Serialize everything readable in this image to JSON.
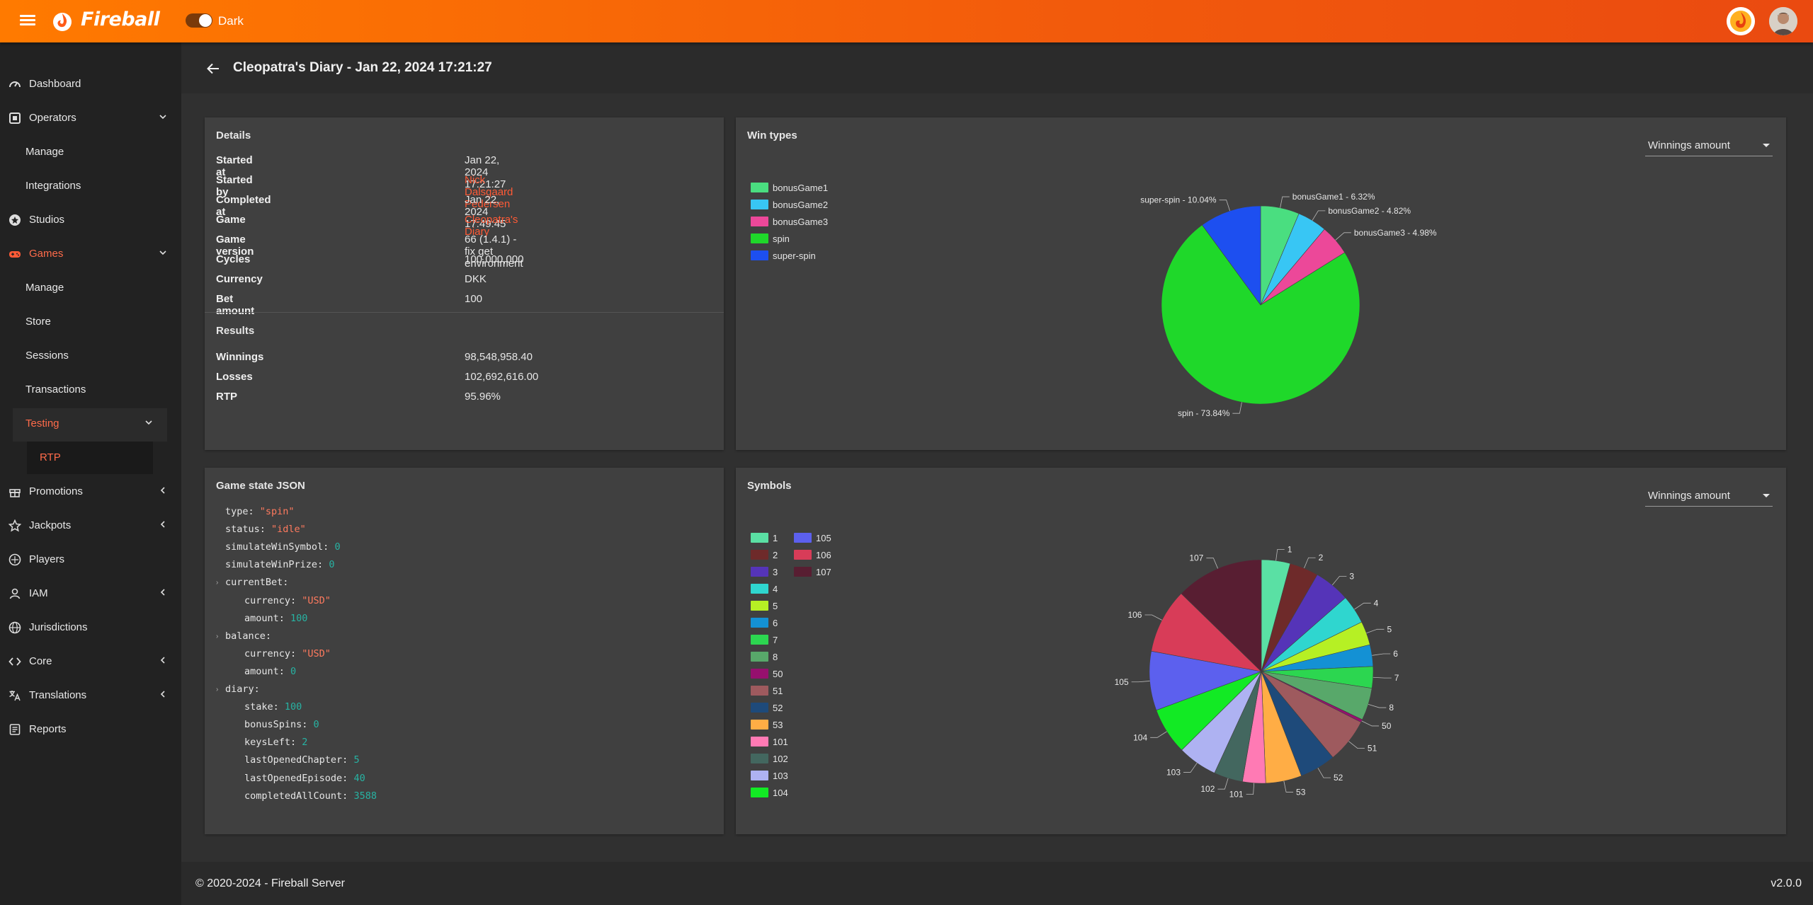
{
  "app": {
    "brand": "Fireball",
    "theme_label": "Dark",
    "accent": "#ff5a36",
    "topbar_color": "#f25a0c"
  },
  "sidebar": {
    "items": [
      {
        "label": "Dashboard",
        "icon": "dashboard-icon"
      },
      {
        "label": "Operators",
        "icon": "operators-icon"
      },
      {
        "label": "Manage"
      },
      {
        "label": "Integrations"
      },
      {
        "label": "Studios",
        "icon": "studios-icon"
      },
      {
        "label": "Games",
        "icon": "gamepad-icon"
      },
      {
        "label": "Manage"
      },
      {
        "label": "Store"
      },
      {
        "label": "Sessions"
      },
      {
        "label": "Transactions"
      },
      {
        "label": "Testing"
      },
      {
        "label": "RTP"
      },
      {
        "label": "Promotions",
        "icon": "gift-icon"
      },
      {
        "label": "Jackpots",
        "icon": "star-icon"
      },
      {
        "label": "Players",
        "icon": "players-icon"
      },
      {
        "label": "IAM",
        "icon": "person-icon"
      },
      {
        "label": "Jurisdictions",
        "icon": "globe-icon"
      },
      {
        "label": "Core",
        "icon": "code-icon"
      },
      {
        "label": "Translations",
        "icon": "translate-icon"
      },
      {
        "label": "Reports",
        "icon": "reports-icon"
      }
    ]
  },
  "header": {
    "title": "Cleopatra's Diary - Jan 22, 2024 17:21:27"
  },
  "details": {
    "title": "Details",
    "rows": [
      {
        "key": "Started at",
        "value": "Jan 22, 2024 17:21:27"
      },
      {
        "key": "Started by",
        "value": "Nick Dalsgaard Pedersen"
      },
      {
        "key": "Completed at",
        "value": "Jan 22, 2024 17:49:45"
      },
      {
        "key": "Game",
        "value": "Cleopatra's Diary"
      },
      {
        "key": "Game version",
        "value": "66 (1.4.1) - fix get environment"
      },
      {
        "key": "Cycles",
        "value": "100,000,000"
      },
      {
        "key": "Currency",
        "value": "DKK"
      },
      {
        "key": "Bet amount",
        "value": "100"
      }
    ],
    "results_title": "Results",
    "results": [
      {
        "key": "Winnings",
        "value": "98,548,958.40"
      },
      {
        "key": "Losses",
        "value": "102,692,616.00"
      },
      {
        "key": "RTP",
        "value": "95.96%"
      }
    ]
  },
  "win_types": {
    "title": "Win types",
    "select_value": "Winnings amount"
  },
  "symbols": {
    "title": "Symbols",
    "select_value": "Winnings amount"
  },
  "json_panel": {
    "title": "Game state JSON",
    "lines": [
      {
        "indent": 0,
        "key": "type",
        "value": "\"spin\"",
        "kind": "str"
      },
      {
        "indent": 0,
        "key": "status",
        "value": "\"idle\"",
        "kind": "str"
      },
      {
        "indent": 0,
        "key": "simulateWinSymbol",
        "value": "0",
        "kind": "num"
      },
      {
        "indent": 0,
        "key": "simulateWinPrize",
        "value": "0",
        "kind": "num"
      },
      {
        "indent": 0,
        "key": "currentBet",
        "value": "",
        "kind": "obj"
      },
      {
        "indent": 1,
        "key": "currency",
        "value": "\"USD\"",
        "kind": "str"
      },
      {
        "indent": 1,
        "key": "amount",
        "value": "100",
        "kind": "num"
      },
      {
        "indent": 0,
        "key": "balance",
        "value": "",
        "kind": "obj"
      },
      {
        "indent": 1,
        "key": "currency",
        "value": "\"USD\"",
        "kind": "str"
      },
      {
        "indent": 1,
        "key": "amount",
        "value": "0",
        "kind": "num"
      },
      {
        "indent": 0,
        "key": "diary",
        "value": "",
        "kind": "obj"
      },
      {
        "indent": 1,
        "key": "stake",
        "value": "100",
        "kind": "num"
      },
      {
        "indent": 1,
        "key": "bonusSpins",
        "value": "0",
        "kind": "num"
      },
      {
        "indent": 1,
        "key": "keysLeft",
        "value": "2",
        "kind": "num"
      },
      {
        "indent": 1,
        "key": "lastOpenedChapter",
        "value": "5",
        "kind": "num"
      },
      {
        "indent": 1,
        "key": "lastOpenedEpisode",
        "value": "40",
        "kind": "num"
      },
      {
        "indent": 1,
        "key": "completedAllCount",
        "value": "3588",
        "kind": "num"
      }
    ]
  },
  "chart_data": [
    {
      "type": "pie",
      "title": "Win types",
      "categories": [
        "bonusGame1",
        "bonusGame2",
        "bonusGame3",
        "spin",
        "super-spin"
      ],
      "values": [
        6.32,
        4.82,
        4.98,
        73.84,
        10.04
      ],
      "colors": [
        "#4ade80",
        "#38c6f4",
        "#ec4899",
        "#1fd82a",
        "#1d4ff0"
      ],
      "labels": [
        "bonusGame1 - 6.32%",
        "bonusGame2 - 4.82%",
        "bonusGame3 - 4.98%",
        "spin - 73.84%",
        "super-spin - 10.04%"
      ],
      "legend": "left"
    },
    {
      "type": "pie",
      "title": "Symbols",
      "categories": [
        "1",
        "2",
        "3",
        "4",
        "5",
        "6",
        "7",
        "8",
        "50",
        "51",
        "52",
        "53",
        "101",
        "102",
        "103",
        "104",
        "105",
        "106",
        "107"
      ],
      "values": [
        4,
        4,
        5,
        4,
        3.3,
        3,
        3,
        4.5,
        0.4,
        6.2,
        5,
        5,
        3.2,
        4,
        5.5,
        6.5,
        8.2,
        9,
        12.2
      ],
      "colors": [
        "#5ae0a4",
        "#6e2a2a",
        "#5534b8",
        "#2fd6cf",
        "#b6f024",
        "#1491d4",
        "#2cd650",
        "#58a86a",
        "#96106e",
        "#9e5a5e",
        "#1e4a7a",
        "#ffad45",
        "#ff7ab4",
        "#43675f",
        "#aeb2f2",
        "#12ea24",
        "#5c60ee",
        "#d83c58",
        "#581e32"
      ],
      "legend": "left"
    }
  ],
  "footer": {
    "copyright": "© 2020-2024 - Fireball Server",
    "version": "v2.0.0"
  }
}
